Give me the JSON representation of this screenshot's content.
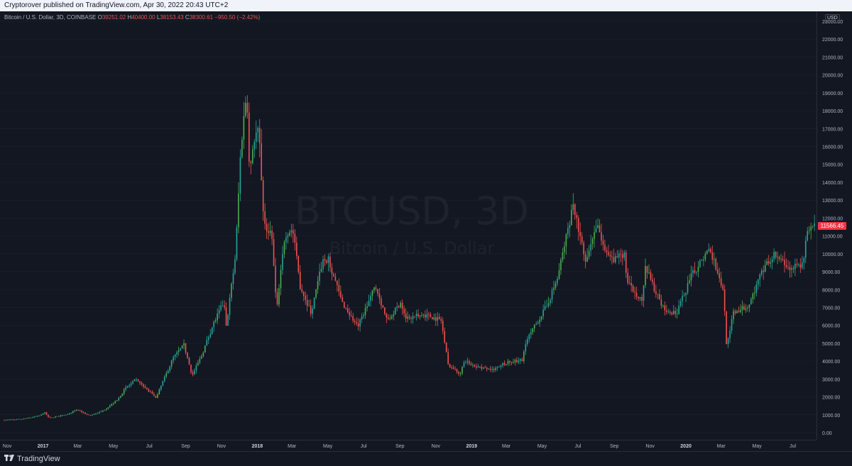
{
  "publisher_line": "Cryptorover published on TradingView.com, Apr 30, 2022 20:43 UTC+2",
  "legend": {
    "symbol": "Bitcoin / U.S. Dollar, 3D, COINBASE",
    "open_label": "O",
    "open": "39251.02",
    "high_label": "H",
    "high": "40400.00",
    "low_label": "L",
    "low": "38153.43",
    "close_label": "C",
    "close": "38300.61",
    "change": "−950.50 (−2.42%)"
  },
  "watermark": {
    "title": "BTCUSD, 3D",
    "subtitle": "Bitcoin / U.S. Dollar"
  },
  "currency_button": "USD",
  "last_price": "11566.45",
  "brand": "TradingView",
  "colors": {
    "up": "#26a69a",
    "up_alt": "#4caf50",
    "down": "#ef5350",
    "background": "#131722",
    "grid": "#1e222d",
    "text": "#b2b5be"
  },
  "chart_data": {
    "type": "candlestick",
    "title": "BTCUSD, 3D",
    "subtitle": "Bitcoin / U.S. Dollar",
    "interval": "3D",
    "exchange": "COINBASE",
    "ylim": [
      0,
      23000
    ],
    "y_ticks": [
      "0.00",
      "1000.00",
      "2000.00",
      "3000.00",
      "4000.00",
      "5000.00",
      "6000.00",
      "7000.00",
      "8000.00",
      "9000.00",
      "10000.00",
      "11000.00",
      "12000.00",
      "13000.00",
      "14000.00",
      "15000.00",
      "16000.00",
      "17000.00",
      "18000.00",
      "19000.00",
      "20000.00",
      "21000.00",
      "22000.00",
      "23000.00"
    ],
    "x_ticks": [
      "Nov",
      "2017",
      "Mar",
      "May",
      "Jul",
      "Sep",
      "Nov",
      "2018",
      "Mar",
      "May",
      "Jul",
      "Sep",
      "Nov",
      "2019",
      "Mar",
      "May",
      "Jul",
      "Sep",
      "Nov",
      "2020",
      "Mar",
      "May",
      "Jul"
    ],
    "x_range": [
      "2016-10-27",
      "2020-08-08"
    ],
    "price_path": [
      [
        "2016-10-27",
        700
      ],
      [
        "2016-12-01",
        760
      ],
      [
        "2016-12-31",
        960
      ],
      [
        "2017-01-06",
        1150
      ],
      [
        "2017-01-14",
        820
      ],
      [
        "2017-02-15",
        1020
      ],
      [
        "2017-03-03",
        1280
      ],
      [
        "2017-03-24",
        950
      ],
      [
        "2017-04-15",
        1200
      ],
      [
        "2017-05-10",
        1800
      ],
      [
        "2017-05-25",
        2500
      ],
      [
        "2017-06-11",
        2950
      ],
      [
        "2017-07-16",
        1950
      ],
      [
        "2017-07-25",
        2700
      ],
      [
        "2017-08-14",
        4200
      ],
      [
        "2017-09-01",
        4900
      ],
      [
        "2017-09-15",
        3200
      ],
      [
        "2017-10-01",
        4300
      ],
      [
        "2017-10-20",
        6000
      ],
      [
        "2017-11-08",
        7300
      ],
      [
        "2017-11-12",
        5900
      ],
      [
        "2017-11-28",
        10000
      ],
      [
        "2017-12-07",
        16000
      ],
      [
        "2017-12-17",
        19200
      ],
      [
        "2017-12-22",
        14500
      ],
      [
        "2017-12-27",
        16000
      ],
      [
        "2018-01-06",
        17000
      ],
      [
        "2018-01-16",
        11500
      ],
      [
        "2018-01-28",
        11200
      ],
      [
        "2018-02-06",
        6800
      ],
      [
        "2018-02-20",
        11100
      ],
      [
        "2018-03-05",
        11400
      ],
      [
        "2018-03-18",
        8200
      ],
      [
        "2018-04-06",
        6700
      ],
      [
        "2018-04-25",
        9600
      ],
      [
        "2018-05-05",
        9700
      ],
      [
        "2018-05-28",
        7300
      ],
      [
        "2018-06-24",
        5900
      ],
      [
        "2018-07-24",
        8200
      ],
      [
        "2018-08-14",
        6200
      ],
      [
        "2018-09-05",
        7300
      ],
      [
        "2018-09-15",
        6400
      ],
      [
        "2018-10-15",
        6600
      ],
      [
        "2018-11-13",
        6300
      ],
      [
        "2018-11-25",
        3800
      ],
      [
        "2018-12-15",
        3300
      ],
      [
        "2018-12-24",
        4000
      ],
      [
        "2019-01-20",
        3600
      ],
      [
        "2019-02-10",
        3500
      ],
      [
        "2019-02-25",
        3850
      ],
      [
        "2019-04-01",
        4100
      ],
      [
        "2019-04-05",
        5000
      ],
      [
        "2019-05-12",
        7100
      ],
      [
        "2019-05-30",
        8600
      ],
      [
        "2019-06-26",
        12800
      ],
      [
        "2019-07-17",
        9500
      ],
      [
        "2019-08-06",
        11500
      ],
      [
        "2019-08-29",
        9600
      ],
      [
        "2019-09-22",
        10000
      ],
      [
        "2019-09-25",
        8400
      ],
      [
        "2019-10-22",
        7400
      ],
      [
        "2019-10-26",
        9300
      ],
      [
        "2019-11-25",
        7000
      ],
      [
        "2019-12-18",
        6600
      ],
      [
        "2020-01-14",
        8800
      ],
      [
        "2020-02-13",
        10300
      ],
      [
        "2020-03-08",
        8000
      ],
      [
        "2020-03-13",
        4900
      ],
      [
        "2020-03-25",
        6700
      ],
      [
        "2020-04-20",
        7100
      ],
      [
        "2020-05-10",
        8800
      ],
      [
        "2020-06-01",
        10000
      ],
      [
        "2020-06-25",
        9200
      ],
      [
        "2020-07-21",
        9400
      ],
      [
        "2020-07-28",
        11000
      ],
      [
        "2020-08-08",
        11566
      ]
    ]
  }
}
